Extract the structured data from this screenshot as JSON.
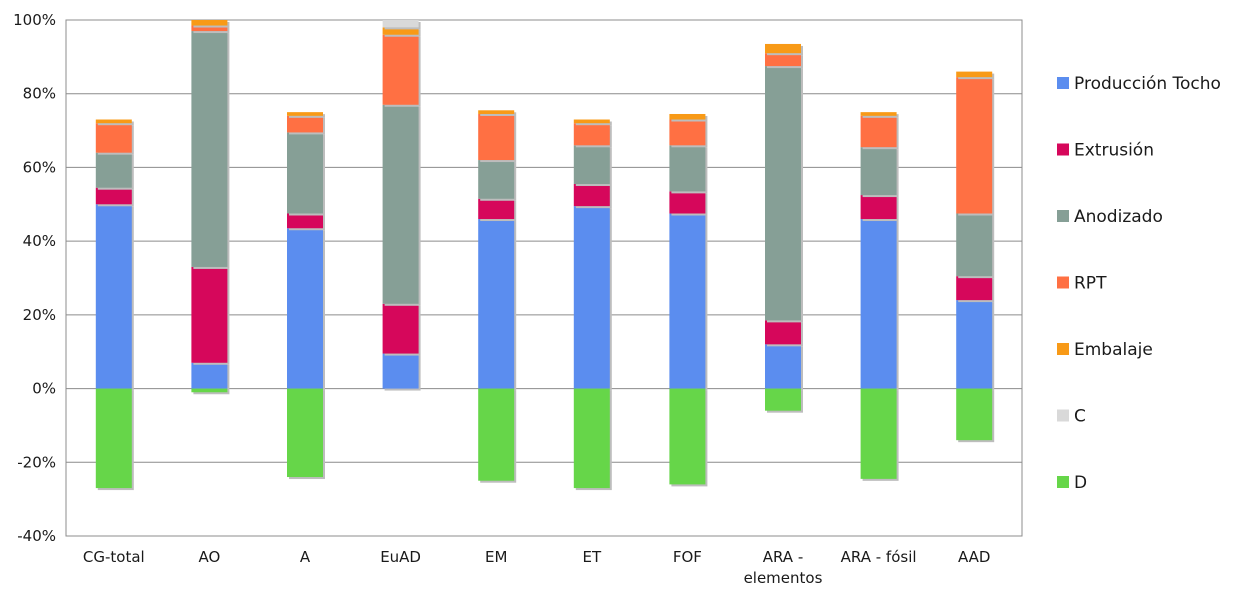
{
  "chart_data": {
    "type": "bar",
    "stacked": true,
    "title": "",
    "xlabel": "",
    "ylabel": "",
    "ylim": [
      -40,
      100
    ],
    "yticks": [
      -40,
      -20,
      0,
      20,
      40,
      60,
      80,
      100
    ],
    "ytick_format": "{v}%",
    "grid": true,
    "legend_position": "right",
    "categories": [
      [
        "CG-total"
      ],
      [
        "AO"
      ],
      [
        "A"
      ],
      [
        "EuAD"
      ],
      [
        "EM"
      ],
      [
        "ET"
      ],
      [
        "FOF"
      ],
      [
        "ARA -",
        "elementos"
      ],
      [
        "ARA - fósil"
      ],
      [
        "AAD"
      ]
    ],
    "series": [
      {
        "name": "Producción Tocho",
        "color": "#5B8DEF",
        "values": [
          50,
          7,
          43.5,
          9.5,
          46,
          49.5,
          47.5,
          12,
          46,
          24
        ]
      },
      {
        "name": "Extrusión",
        "color": "#D6075B",
        "values": [
          4.5,
          26,
          4,
          13.5,
          5.5,
          6,
          6,
          6.5,
          6.5,
          6.5
        ]
      },
      {
        "name": "Anodizado",
        "color": "#869F96",
        "values": [
          9.5,
          64,
          22,
          54,
          10.5,
          10.5,
          12.5,
          69,
          13,
          17
        ]
      },
      {
        "name": "RPT",
        "color": "#FF7043",
        "values": [
          8,
          1.5,
          4.5,
          19,
          12.5,
          6,
          7,
          3.5,
          8.5,
          37
        ]
      },
      {
        "name": "Embalaje",
        "color": "#F89A17",
        "values": [
          1,
          1.5,
          1,
          2,
          1,
          1,
          1.5,
          2.5,
          1,
          1.5
        ]
      },
      {
        "name": "C",
        "color": "#D9D9D9",
        "values": [
          0,
          0,
          0,
          2,
          0,
          0,
          0,
          0,
          0,
          0
        ]
      },
      {
        "name": "D",
        "color": "#66D649",
        "values": [
          -27,
          -1,
          -24,
          0,
          -25,
          -27,
          -26,
          -6,
          -24.5,
          -14
        ]
      }
    ]
  }
}
